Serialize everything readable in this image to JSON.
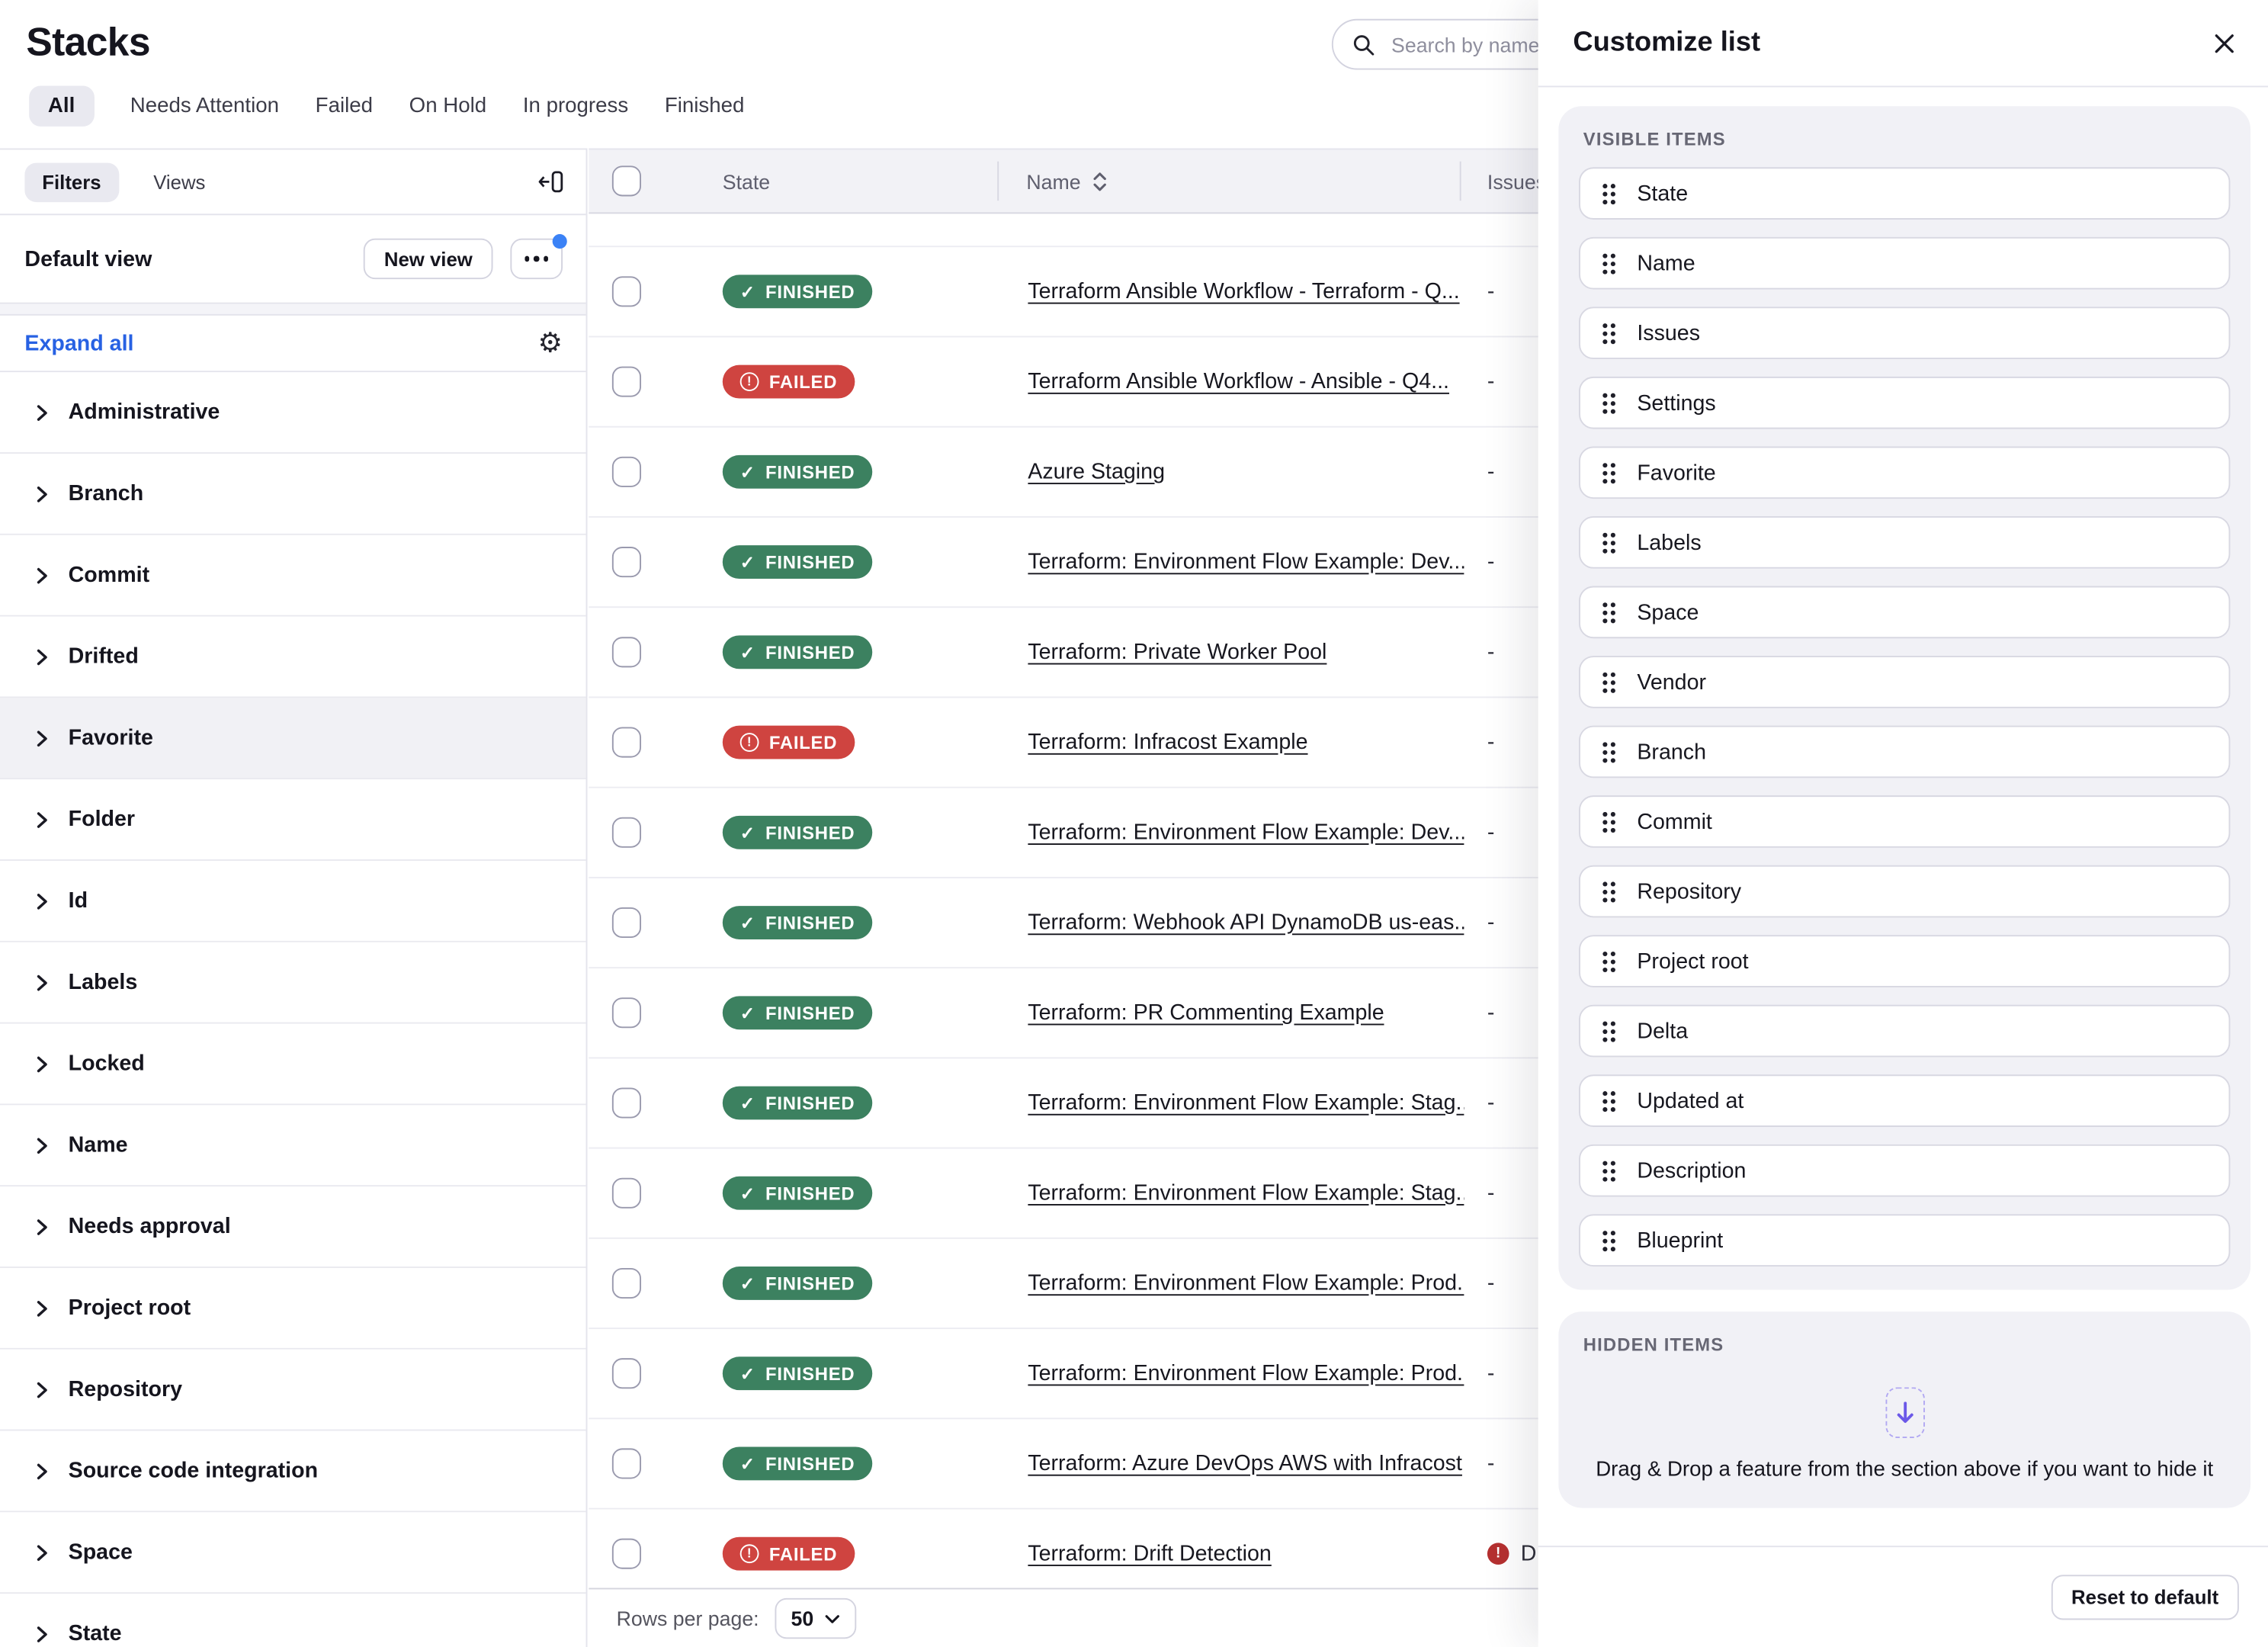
{
  "app": {
    "title": "Stacks"
  },
  "tabs": [
    {
      "label": "All",
      "active": true
    },
    {
      "label": "Needs Attention",
      "active": false
    },
    {
      "label": "Failed",
      "active": false
    },
    {
      "label": "On Hold",
      "active": false
    },
    {
      "label": "In progress",
      "active": false
    },
    {
      "label": "Finished",
      "active": false
    }
  ],
  "search": {
    "placeholder": "Search by name, ID"
  },
  "sidebar": {
    "filters_tab": "Filters",
    "views_tab": "Views",
    "view_name": "Default view",
    "new_view_button": "New view",
    "expand_all_link": "Expand all",
    "filter_groups": [
      {
        "label": "Administrative",
        "active": false
      },
      {
        "label": "Branch",
        "active": false
      },
      {
        "label": "Commit",
        "active": false
      },
      {
        "label": "Drifted",
        "active": false
      },
      {
        "label": "Favorite",
        "active": true
      },
      {
        "label": "Folder",
        "active": false
      },
      {
        "label": "Id",
        "active": false
      },
      {
        "label": "Labels",
        "active": false
      },
      {
        "label": "Locked",
        "active": false
      },
      {
        "label": "Name",
        "active": false
      },
      {
        "label": "Needs approval",
        "active": false
      },
      {
        "label": "Project root",
        "active": false
      },
      {
        "label": "Repository",
        "active": false
      },
      {
        "label": "Source code integration",
        "active": false
      },
      {
        "label": "Space",
        "active": false
      },
      {
        "label": "State",
        "active": false
      }
    ]
  },
  "table": {
    "headers": {
      "state": "State",
      "name": "Name",
      "issues": "Issues"
    },
    "rows": [
      {
        "state": "FINISHED",
        "type": "finished",
        "name": "Terraform Ansible Workflow - Terraform - Q...",
        "issues": "-"
      },
      {
        "state": "FAILED",
        "type": "failed",
        "name": "Terraform Ansible Workflow - Ansible - Q4...",
        "issues": "-"
      },
      {
        "state": "FINISHED",
        "type": "finished",
        "name": "Azure Staging",
        "issues": "-"
      },
      {
        "state": "FINISHED",
        "type": "finished",
        "name": "Terraform: Environment Flow Example: Dev...",
        "issues": "-"
      },
      {
        "state": "FINISHED",
        "type": "finished",
        "name": "Terraform: Private Worker Pool",
        "issues": "-"
      },
      {
        "state": "FAILED",
        "type": "failed",
        "name": "Terraform: Infracost Example",
        "issues": "-"
      },
      {
        "state": "FINISHED",
        "type": "finished",
        "name": "Terraform: Environment Flow Example: Dev...",
        "issues": "-"
      },
      {
        "state": "FINISHED",
        "type": "finished",
        "name": "Terraform: Webhook API DynamoDB us-eas...",
        "issues": "-"
      },
      {
        "state": "FINISHED",
        "type": "finished",
        "name": "Terraform: PR Commenting Example",
        "issues": "-"
      },
      {
        "state": "FINISHED",
        "type": "finished",
        "name": "Terraform: Environment Flow Example: Stag...",
        "issues": "-"
      },
      {
        "state": "FINISHED",
        "type": "finished",
        "name": "Terraform: Environment Flow Example: Stag...",
        "issues": "-"
      },
      {
        "state": "FINISHED",
        "type": "finished",
        "name": "Terraform: Environment Flow Example: Prod...",
        "issues": "-"
      },
      {
        "state": "FINISHED",
        "type": "finished",
        "name": "Terraform: Environment Flow Example: Prod...",
        "issues": "-"
      },
      {
        "state": "FINISHED",
        "type": "finished",
        "name": "Terraform: Azure DevOps AWS with Infracost",
        "issues": "-"
      },
      {
        "state": "FAILED",
        "type": "failed",
        "name": "Terraform: Drift Detection",
        "issues": "",
        "issue_badge": "D"
      }
    ],
    "pagination": {
      "label": "Rows per page:",
      "value": "50"
    }
  },
  "panel": {
    "title": "Customize list",
    "visible_section": "VISIBLE ITEMS",
    "visible_items": [
      "State",
      "Name",
      "Issues",
      "Settings",
      "Favorite",
      "Labels",
      "Space",
      "Vendor",
      "Branch",
      "Commit",
      "Repository",
      "Project root",
      "Delta",
      "Updated at",
      "Description",
      "Blueprint"
    ],
    "hidden_section": "HIDDEN ITEMS",
    "hidden_hint": "Drag & Drop a feature from the section above if you want to hide it",
    "reset_button": "Reset to default"
  },
  "colors": {
    "finished_badge": "#3c8160",
    "failed_badge": "#cf4440",
    "issue_dot": "#b53030",
    "link_blue": "#2761e3",
    "notification_dot": "#3b82f6",
    "drop_arrow_purple": "#6b58e8",
    "active_pill_bg": "#e9e9f0"
  }
}
